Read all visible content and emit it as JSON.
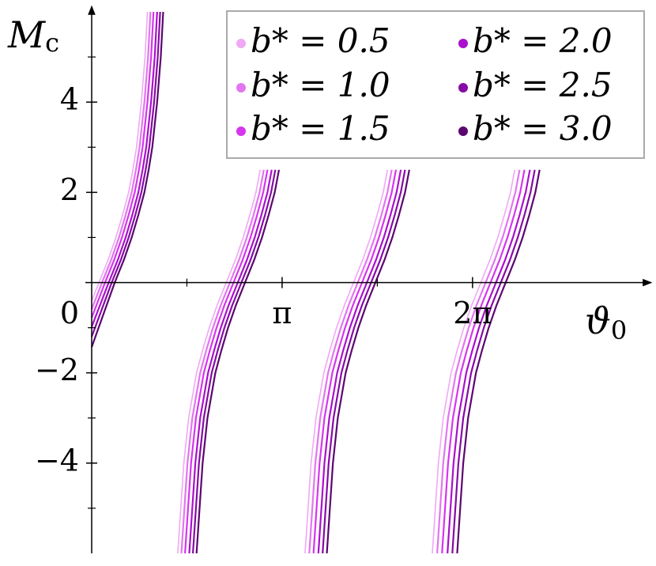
{
  "chart_data": {
    "type": "line",
    "xlabel": {
      "text": "ϑ",
      "subscript": "0"
    },
    "ylabel": {
      "text": "M",
      "subscript": "c"
    },
    "xlim": [
      0,
      9.18
    ],
    "ylim": [
      -6,
      6
    ],
    "xticks": [
      {
        "value": 3.14159,
        "label": "π"
      },
      {
        "value": 6.28319,
        "label": "2π"
      }
    ],
    "xminor": [
      1.5708,
      4.7124
    ],
    "yticks": [
      {
        "value": -4,
        "label": "−4"
      },
      {
        "value": -2,
        "label": "−2"
      },
      0,
      2,
      4
    ],
    "yminor": [
      -5,
      -3,
      -1,
      1,
      3,
      5
    ],
    "grid": false,
    "legend": "upper right",
    "series": [
      {
        "name": "b* = 0.5",
        "color": "#f0a8f4",
        "x": [
          0,
          0.12,
          0.27,
          0.4,
          0.51,
          0.61,
          0.68,
          0.74,
          0.82,
          0.88,
          0.92,
          null,
          1.42,
          1.52,
          1.6,
          1.73,
          1.83,
          1.94,
          2.07,
          2.22,
          2.37,
          2.5,
          2.61,
          2.71,
          2.78,
          null,
          3.52,
          3.62,
          3.7,
          3.83,
          3.93,
          4.04,
          4.17,
          4.32,
          4.47,
          4.6,
          4.71,
          4.81,
          4.88,
          null,
          5.62,
          5.72,
          5.8,
          5.93,
          6.03,
          6.14,
          6.27,
          6.42,
          6.57,
          6.7,
          6.81,
          6.91,
          6.98
        ],
        "values": [
          -0.4,
          0,
          0.5,
          1,
          1.5,
          2,
          2.5,
          3,
          4,
          5,
          6,
          null,
          -6,
          -4,
          -3,
          -2,
          -1.5,
          -1,
          -0.5,
          0,
          0.5,
          1,
          1.5,
          2,
          2.5,
          null,
          -6,
          -4,
          -3,
          -2,
          -1.5,
          -1,
          -0.5,
          0,
          0.5,
          1,
          1.5,
          2,
          2.5,
          null,
          -6,
          -4,
          -3,
          -2,
          -1.5,
          -1,
          -0.5,
          0,
          0.5,
          1,
          1.5,
          2,
          2.5
        ]
      },
      {
        "name": "b* = 1.0",
        "color": "#e276f0",
        "x": [
          0,
          0.17,
          0.32,
          0.45,
          0.56,
          0.66,
          0.73,
          0.79,
          0.87,
          0.93,
          0.97,
          null,
          1.48,
          1.58,
          1.66,
          1.79,
          1.89,
          2.0,
          2.13,
          2.28,
          2.43,
          2.56,
          2.67,
          2.77,
          2.84,
          null,
          3.59,
          3.69,
          3.77,
          3.9,
          4.0,
          4.11,
          4.24,
          4.39,
          4.54,
          4.67,
          4.78,
          4.88,
          4.95,
          null,
          5.7,
          5.8,
          5.88,
          6.01,
          6.11,
          6.22,
          6.35,
          6.5,
          6.65,
          6.78,
          6.89,
          6.99,
          7.06
        ],
        "values": [
          -0.59,
          0,
          0.5,
          1,
          1.5,
          2,
          2.5,
          3,
          4,
          5,
          6,
          null,
          -6,
          -4,
          -3,
          -2,
          -1.5,
          -1,
          -0.5,
          0,
          0.5,
          1,
          1.5,
          2,
          2.5,
          null,
          -6,
          -4,
          -3,
          -2,
          -1.5,
          -1,
          -0.5,
          0,
          0.5,
          1,
          1.5,
          2,
          2.5,
          null,
          -6,
          -4,
          -3,
          -2,
          -1.5,
          -1,
          -0.5,
          0,
          0.5,
          1,
          1.5,
          2,
          2.5
        ]
      },
      {
        "name": "b* = 1.5",
        "color": "#d636ee",
        "x": [
          0,
          0.22,
          0.37,
          0.5,
          0.61,
          0.71,
          0.78,
          0.84,
          0.92,
          0.98,
          1.02,
          null,
          1.54,
          1.64,
          1.72,
          1.85,
          1.95,
          2.06,
          2.19,
          2.34,
          2.49,
          2.62,
          2.73,
          2.83,
          2.9,
          null,
          3.66,
          3.76,
          3.84,
          3.97,
          4.07,
          4.18,
          4.31,
          4.46,
          4.61,
          4.74,
          4.85,
          4.95,
          5.02,
          null,
          5.78,
          5.88,
          5.96,
          6.09,
          6.19,
          6.3,
          6.43,
          6.58,
          6.73,
          6.86,
          6.97,
          7.07,
          7.14
        ],
        "values": [
          -0.78,
          0,
          0.5,
          1,
          1.5,
          2,
          2.5,
          3,
          4,
          5,
          6,
          null,
          -6,
          -4,
          -3,
          -2,
          -1.5,
          -1,
          -0.5,
          0,
          0.5,
          1,
          1.5,
          2,
          2.5,
          null,
          -6,
          -4,
          -3,
          -2,
          -1.5,
          -1,
          -0.5,
          0,
          0.5,
          1,
          1.5,
          2,
          2.5,
          null,
          -6,
          -4,
          -3,
          -2,
          -1.5,
          -1,
          -0.5,
          0,
          0.5,
          1,
          1.5,
          2,
          2.5
        ]
      },
      {
        "name": "b* = 2.0",
        "color": "#aa10cc",
        "x": [
          0,
          0.28,
          0.43,
          0.56,
          0.67,
          0.77,
          0.84,
          0.9,
          0.98,
          1.04,
          1.08,
          null,
          1.61,
          1.71,
          1.79,
          1.92,
          2.02,
          2.13,
          2.26,
          2.41,
          2.56,
          2.69,
          2.8,
          2.9,
          2.97,
          null,
          3.74,
          3.84,
          3.92,
          4.05,
          4.15,
          4.26,
          4.39,
          4.54,
          4.69,
          4.82,
          4.93,
          5.03,
          5.1,
          null,
          5.87,
          5.97,
          6.05,
          6.18,
          6.28,
          6.39,
          6.52,
          6.67,
          6.82,
          6.95,
          7.06,
          7.16,
          7.23
        ],
        "values": [
          -0.98,
          0,
          0.5,
          1,
          1.5,
          2,
          2.5,
          3,
          4,
          5,
          6,
          null,
          -6,
          -4,
          -3,
          -2,
          -1.5,
          -1,
          -0.5,
          0,
          0.5,
          1,
          1.5,
          2,
          2.5,
          null,
          -6,
          -4,
          -3,
          -2,
          -1.5,
          -1,
          -0.5,
          0,
          0.5,
          1,
          1.5,
          2,
          2.5,
          null,
          -6,
          -4,
          -3,
          -2,
          -1.5,
          -1,
          -0.5,
          0,
          0.5,
          1,
          1.5,
          2,
          2.5
        ]
      },
      {
        "name": "b* = 2.5",
        "color": "#860aa6",
        "x": [
          0,
          0.33,
          0.48,
          0.61,
          0.72,
          0.82,
          0.89,
          0.95,
          1.03,
          1.09,
          1.13,
          null,
          1.67,
          1.77,
          1.85,
          1.98,
          2.08,
          2.19,
          2.32,
          2.47,
          2.62,
          2.75,
          2.86,
          2.96,
          3.03,
          null,
          3.81,
          3.91,
          3.99,
          4.12,
          4.22,
          4.33,
          4.46,
          4.61,
          4.76,
          4.89,
          5.0,
          5.1,
          5.17,
          null,
          5.95,
          6.05,
          6.13,
          6.26,
          6.36,
          6.47,
          6.6,
          6.75,
          6.9,
          7.03,
          7.14,
          7.24,
          7.31
        ],
        "values": [
          -1.2,
          0,
          0.5,
          1,
          1.5,
          2,
          2.5,
          3,
          4,
          5,
          6,
          null,
          -6,
          -4,
          -3,
          -2,
          -1.5,
          -1,
          -0.5,
          0,
          0.5,
          1,
          1.5,
          2,
          2.5,
          null,
          -6,
          -4,
          -3,
          -2,
          -1.5,
          -1,
          -0.5,
          0,
          0.5,
          1,
          1.5,
          2,
          2.5,
          null,
          -6,
          -4,
          -3,
          -2,
          -1.5,
          -1,
          -0.5,
          0,
          0.5,
          1,
          1.5,
          2,
          2.5
        ]
      },
      {
        "name": "b* = 3.0",
        "color": "#5c0670",
        "x": [
          0,
          0.38,
          0.53,
          0.66,
          0.77,
          0.87,
          0.94,
          1.0,
          1.08,
          1.14,
          1.18,
          null,
          1.73,
          1.83,
          1.91,
          2.04,
          2.14,
          2.25,
          2.38,
          2.53,
          2.68,
          2.81,
          2.92,
          3.02,
          3.09,
          null,
          3.88,
          3.98,
          4.06,
          4.19,
          4.29,
          4.4,
          4.53,
          4.68,
          4.83,
          4.96,
          5.07,
          5.17,
          5.24,
          null,
          6.03,
          6.13,
          6.21,
          6.34,
          6.44,
          6.55,
          6.68,
          6.83,
          6.98,
          7.11,
          7.22,
          7.32,
          7.39
        ],
        "values": [
          -1.43,
          0,
          0.5,
          1,
          1.5,
          2,
          2.5,
          3,
          4,
          5,
          6,
          null,
          -6,
          -4,
          -3,
          -2,
          -1.5,
          -1,
          -0.5,
          0,
          0.5,
          1,
          1.5,
          2,
          2.5,
          null,
          -6,
          -4,
          -3,
          -2,
          -1.5,
          -1,
          -0.5,
          0,
          0.5,
          1,
          1.5,
          2,
          2.5,
          null,
          -6,
          -4,
          -3,
          -2,
          -1.5,
          -1,
          -0.5,
          0,
          0.5,
          1,
          1.5,
          2,
          2.5
        ]
      }
    ]
  }
}
